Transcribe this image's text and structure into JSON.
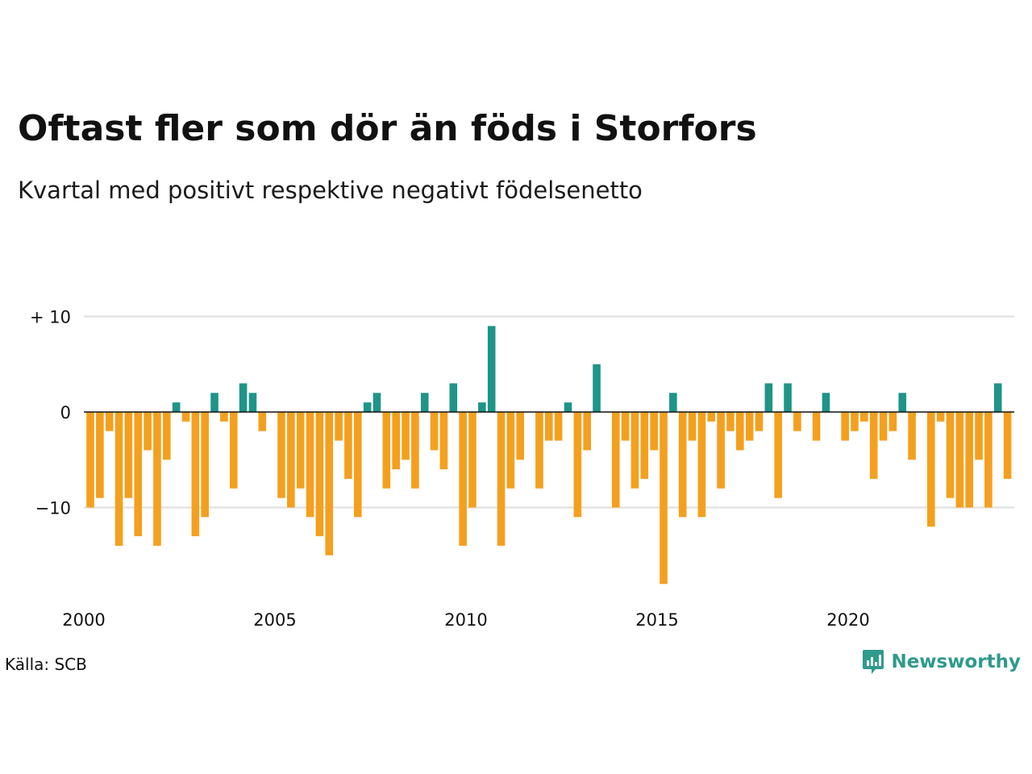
{
  "title": "Oftast fler som dör än föds i Storfors",
  "subtitle": "Kvartal med positivt respektive negativt födelsenetto",
  "source": "Källa: SCB",
  "brand": "Newsworthy",
  "colors": {
    "positive": "#1f9488",
    "negative": "#f4a01e",
    "grid": "#dddddd",
    "zero": "#111111",
    "brand": "#2f9a8c"
  },
  "chart_data": {
    "type": "bar",
    "y_tick_labels": [
      "+ 10",
      "0",
      "−10"
    ],
    "y_ticks": [
      10,
      0,
      -10
    ],
    "x_tick_labels": [
      "2000",
      "2005",
      "2010",
      "2015",
      "2020"
    ],
    "x_ticks": [
      2000,
      2005,
      2010,
      2015,
      2020
    ],
    "ylim": [
      -20,
      12
    ],
    "grid": true,
    "start_year": 2000,
    "values": [
      -10,
      -9,
      -2,
      -14,
      -9,
      -13,
      -4,
      -14,
      -5,
      1,
      -1,
      -13,
      -11,
      2,
      -1,
      -8,
      3,
      2,
      -2,
      0,
      -9,
      -10,
      -8,
      -11,
      -13,
      -15,
      -3,
      -7,
      -11,
      1,
      2,
      -8,
      -6,
      -5,
      -8,
      2,
      -4,
      -6,
      3,
      -14,
      -10,
      1,
      9,
      -14,
      -8,
      -5,
      0,
      -8,
      -3,
      -3,
      1,
      -11,
      -4,
      5,
      0,
      -10,
      -3,
      -8,
      -7,
      -4,
      -18,
      2,
      -11,
      -3,
      -11,
      -1,
      -8,
      -2,
      -4,
      -3,
      -2,
      3,
      -9,
      3,
      -2,
      0,
      -3,
      2,
      0,
      -3,
      -2,
      -1,
      -7,
      -3,
      -2,
      2,
      -5,
      0,
      -12,
      -1,
      -9,
      -10,
      -10,
      -5,
      -10,
      3,
      -7
    ]
  }
}
